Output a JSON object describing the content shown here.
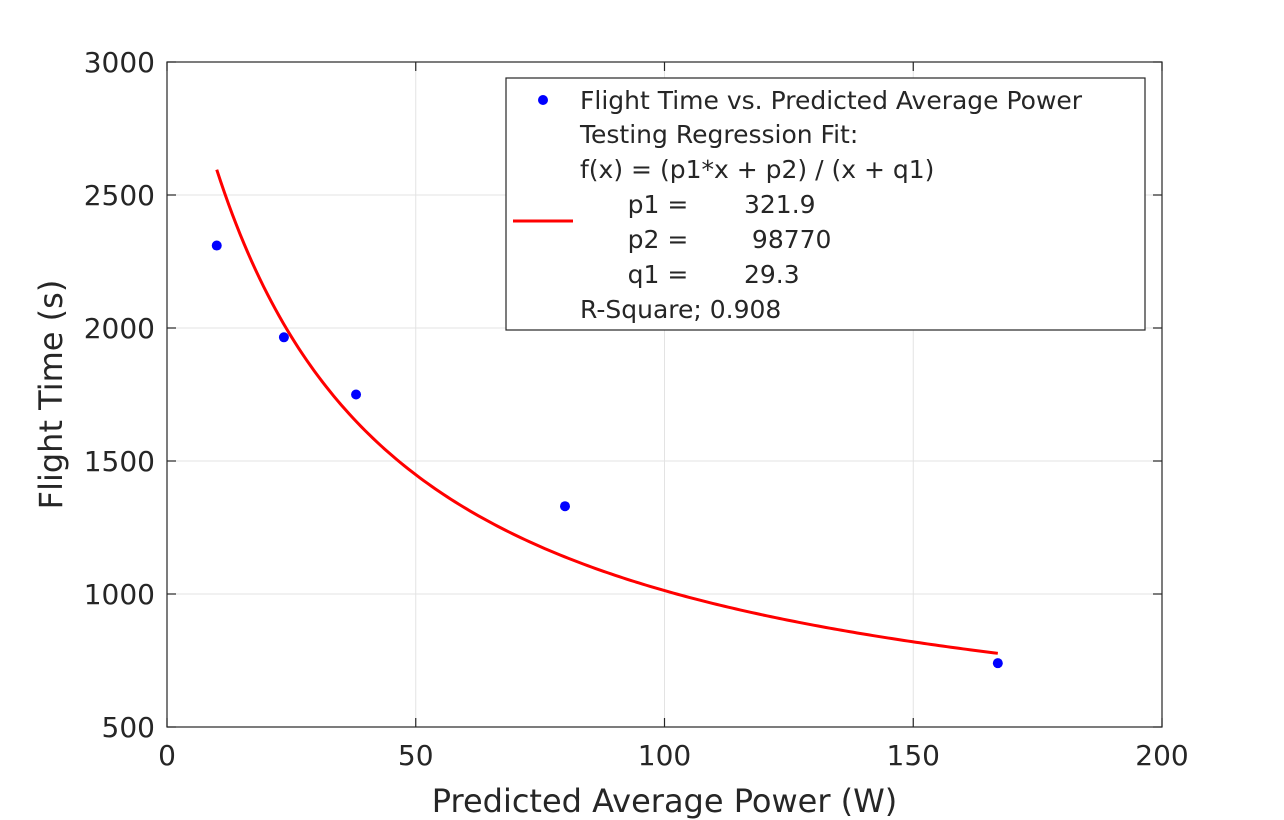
{
  "chart_data": {
    "type": "scatter",
    "xlabel": "Predicted Average Power (W)",
    "ylabel": "Flight Time (s)",
    "xlim": [
      0,
      200
    ],
    "ylim": [
      500,
      3000
    ],
    "xticks": [
      "0",
      "50",
      "100",
      "150",
      "200"
    ],
    "yticks": [
      "500",
      "1000",
      "1500",
      "2000",
      "2500",
      "3000"
    ],
    "grid": true,
    "legend_position": "top-right",
    "series": [
      {
        "name": "Flight Time vs. Predicted Average Power",
        "kind": "scatter",
        "color": "#0000ff",
        "x": [
          10,
          23.5,
          38,
          80,
          167
        ],
        "y": [
          2310,
          1965,
          1750,
          1330,
          740
        ]
      },
      {
        "kind": "fit-curve",
        "color": "#ff0000",
        "model": "(p1*x + p2) / (x + q1)",
        "params": {
          "p1": 321.9,
          "p2": 98770,
          "q1": 29.3
        },
        "x_range": [
          10,
          167
        ]
      }
    ],
    "legend": {
      "marker_entry": "Flight Time vs. Predicted Average Power",
      "line_entry_lines": [
        "Testing Regression Fit:",
        "f(x) = (p1*x + p2) / (x + q1)",
        "      p1 =       321.9",
        "      p2 =        98770",
        "      q1 =       29.3",
        "R-Square; 0.908"
      ]
    }
  }
}
